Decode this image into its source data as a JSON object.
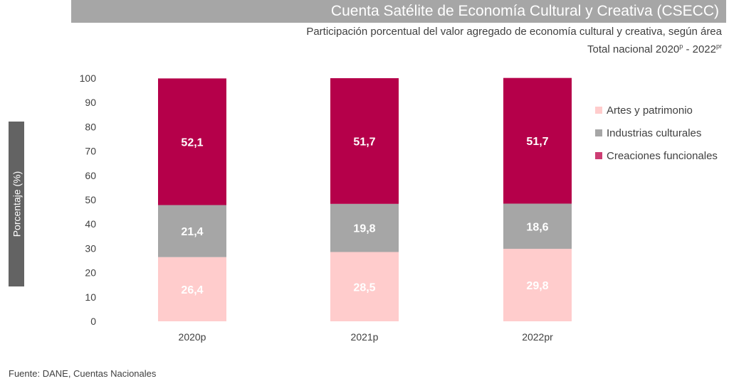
{
  "title": "Cuenta Satélite de Economía Cultural y Creativa (CSECC)",
  "subtitle": "Participación porcentual del valor agregado de economía cultural y creativa, según área",
  "period": {
    "prefix": "Total nacional 2020",
    "sup1": "p",
    "middle": " - 2022",
    "sup2": "pr"
  },
  "footer": "Fuente: DANE, Cuentas Nacionales",
  "chart_data": {
    "type": "bar",
    "stacked": true,
    "categories": [
      "2020p",
      "2021p",
      "2022pr"
    ],
    "series": [
      {
        "name": "Artes y patrimonio",
        "values": [
          26.4,
          28.5,
          29.8
        ],
        "labels": [
          "26,4",
          "28,5",
          "29,8"
        ],
        "color": "#ffcccc"
      },
      {
        "name": "Industrias culturales",
        "values": [
          21.4,
          19.8,
          18.6
        ],
        "labels": [
          "21,4",
          "19,8",
          "18,6"
        ],
        "color": "#a6a6a6"
      },
      {
        "name": "Creaciones funcionales",
        "values": [
          52.1,
          51.7,
          51.7
        ],
        "labels": [
          "52,1",
          "51,7",
          "51,7"
        ],
        "color": "#b5004a"
      }
    ],
    "ylabel": "Porcentaje (%)",
    "ylim": [
      0,
      100
    ],
    "yticks": [
      0,
      10,
      20,
      30,
      40,
      50,
      60,
      70,
      80,
      90,
      100
    ],
    "legend_position": "right",
    "legend_colors": [
      "#ffcccc",
      "#a6a6a6",
      "#cc3d73"
    ],
    "grid": false
  }
}
